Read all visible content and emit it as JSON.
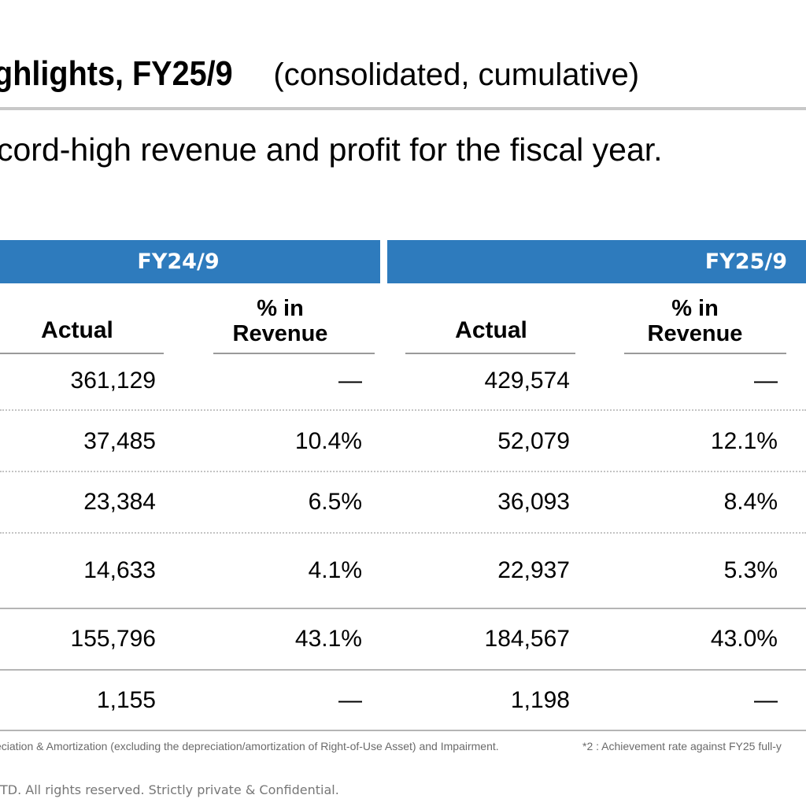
{
  "header": {
    "title_main": "ghlights,  FY25/9",
    "title_sub": "(consolidated, cumulative)",
    "headline": "cord-high revenue and profit for the fiscal year."
  },
  "table": {
    "groups": [
      "FY24/9",
      "FY25/9"
    ],
    "columns": {
      "actual": "Actual",
      "pct_line1": "% in",
      "pct_line2": "Revenue"
    },
    "rows": [
      {
        "fy24_actual": "361,129",
        "fy24_pct": "—",
        "fy25_actual": "429,574",
        "fy25_pct": "—"
      },
      {
        "fy24_actual": "37,485",
        "fy24_pct": "10.4%",
        "fy25_actual": "52,079",
        "fy25_pct": "12.1%"
      },
      {
        "fy24_actual": "23,384",
        "fy24_pct": "6.5%",
        "fy25_actual": "36,093",
        "fy25_pct": "8.4%"
      },
      {
        "fy24_actual": "14,633",
        "fy24_pct": "4.1%",
        "fy25_actual": "22,937",
        "fy25_pct": "5.3%"
      },
      {
        "fy24_actual": "155,796",
        "fy24_pct": "43.1%",
        "fy25_actual": "184,567",
        "fy25_pct": "43.0%"
      },
      {
        "fy24_actual": "1,155",
        "fy24_pct": "—",
        "fy25_actual": "1,198",
        "fy25_pct": "—"
      }
    ]
  },
  "footnotes": {
    "note1": "eciation & Amortization (excluding the depreciation/amortization of Right-of-Use Asset) and Impairment.",
    "note2": "*2 :   Achievement rate against FY25 full-y"
  },
  "copyright": "TD. All rights reserved. Strictly private & Confidential.",
  "colors": {
    "band": "#2e7bbd",
    "rule": "#c8c8c8"
  }
}
